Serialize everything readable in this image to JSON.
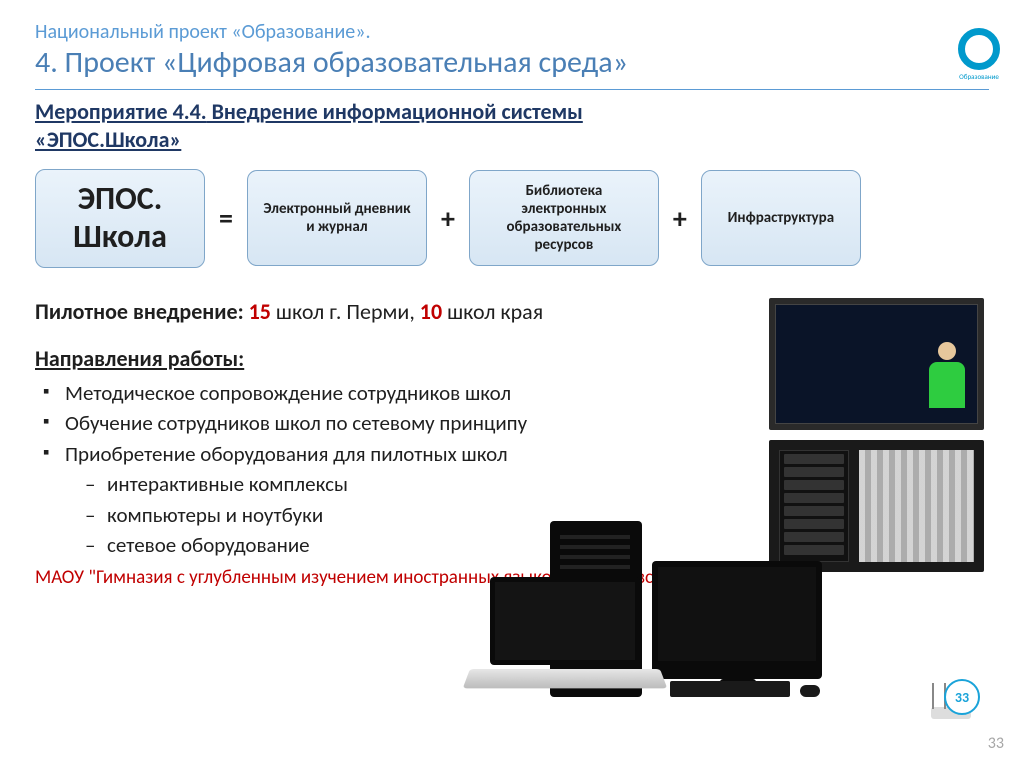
{
  "header": {
    "supertitle": "Национальный проект «Образование».",
    "title": "4. Проект «Цифровая образовательная среда»",
    "logo_label": "Образование"
  },
  "subhead": {
    "line1": "Мероприятие 4.4.",
    "line2_rest": " Внедрение информационной системы",
    "line3": "«ЭПОС.Школа»"
  },
  "formula": {
    "main_card": "ЭПОС. Школа",
    "op_eq": "=",
    "card1": "Электронный дневник и журнал",
    "op_plus1": "+",
    "card2": "Библиотека электронных образовательных ресурсов",
    "op_plus2": "+",
    "card3": "Инфраструктура",
    "card_bg_from": "#eaf3fb",
    "card_bg_to": "#d7e6f3",
    "card_border": "#7fa6c9"
  },
  "pilot": {
    "label": "Пилотное внедрение: ",
    "n1": "15",
    "t1": " школ г. Перми, ",
    "n2": "10",
    "t2": " школ края",
    "highlight_color": "#c00000"
  },
  "directions": {
    "title": "Направления работы:",
    "items": [
      "Методическое сопровождение сотрудников школ",
      "Обучение сотрудников школ по сетевому принципу",
      "Приобретение оборудования для пилотных школ"
    ],
    "subitems": [
      "интерактивные комплексы",
      "компьютеры и ноутбуки",
      "сетевое оборудование"
    ]
  },
  "footer_note": "МАОУ \"Гимназия с углубленным изучением иностранных языков\" г. Чайковского",
  "images": {
    "top_alt": "interactive-display-photo",
    "bottom_alt": "server-rack-photo",
    "hardware_alt": "computer-hardware-cluster",
    "wifi_alt": "wifi-router-icon"
  },
  "slide_number": "33",
  "colors": {
    "accent_blue": "#4a7fb5",
    "light_blue": "#5b9bd5",
    "logo_blue": "#0099cc",
    "red": "#c00000",
    "text": "#1f1f1f",
    "muted": "#a6a6a6"
  }
}
